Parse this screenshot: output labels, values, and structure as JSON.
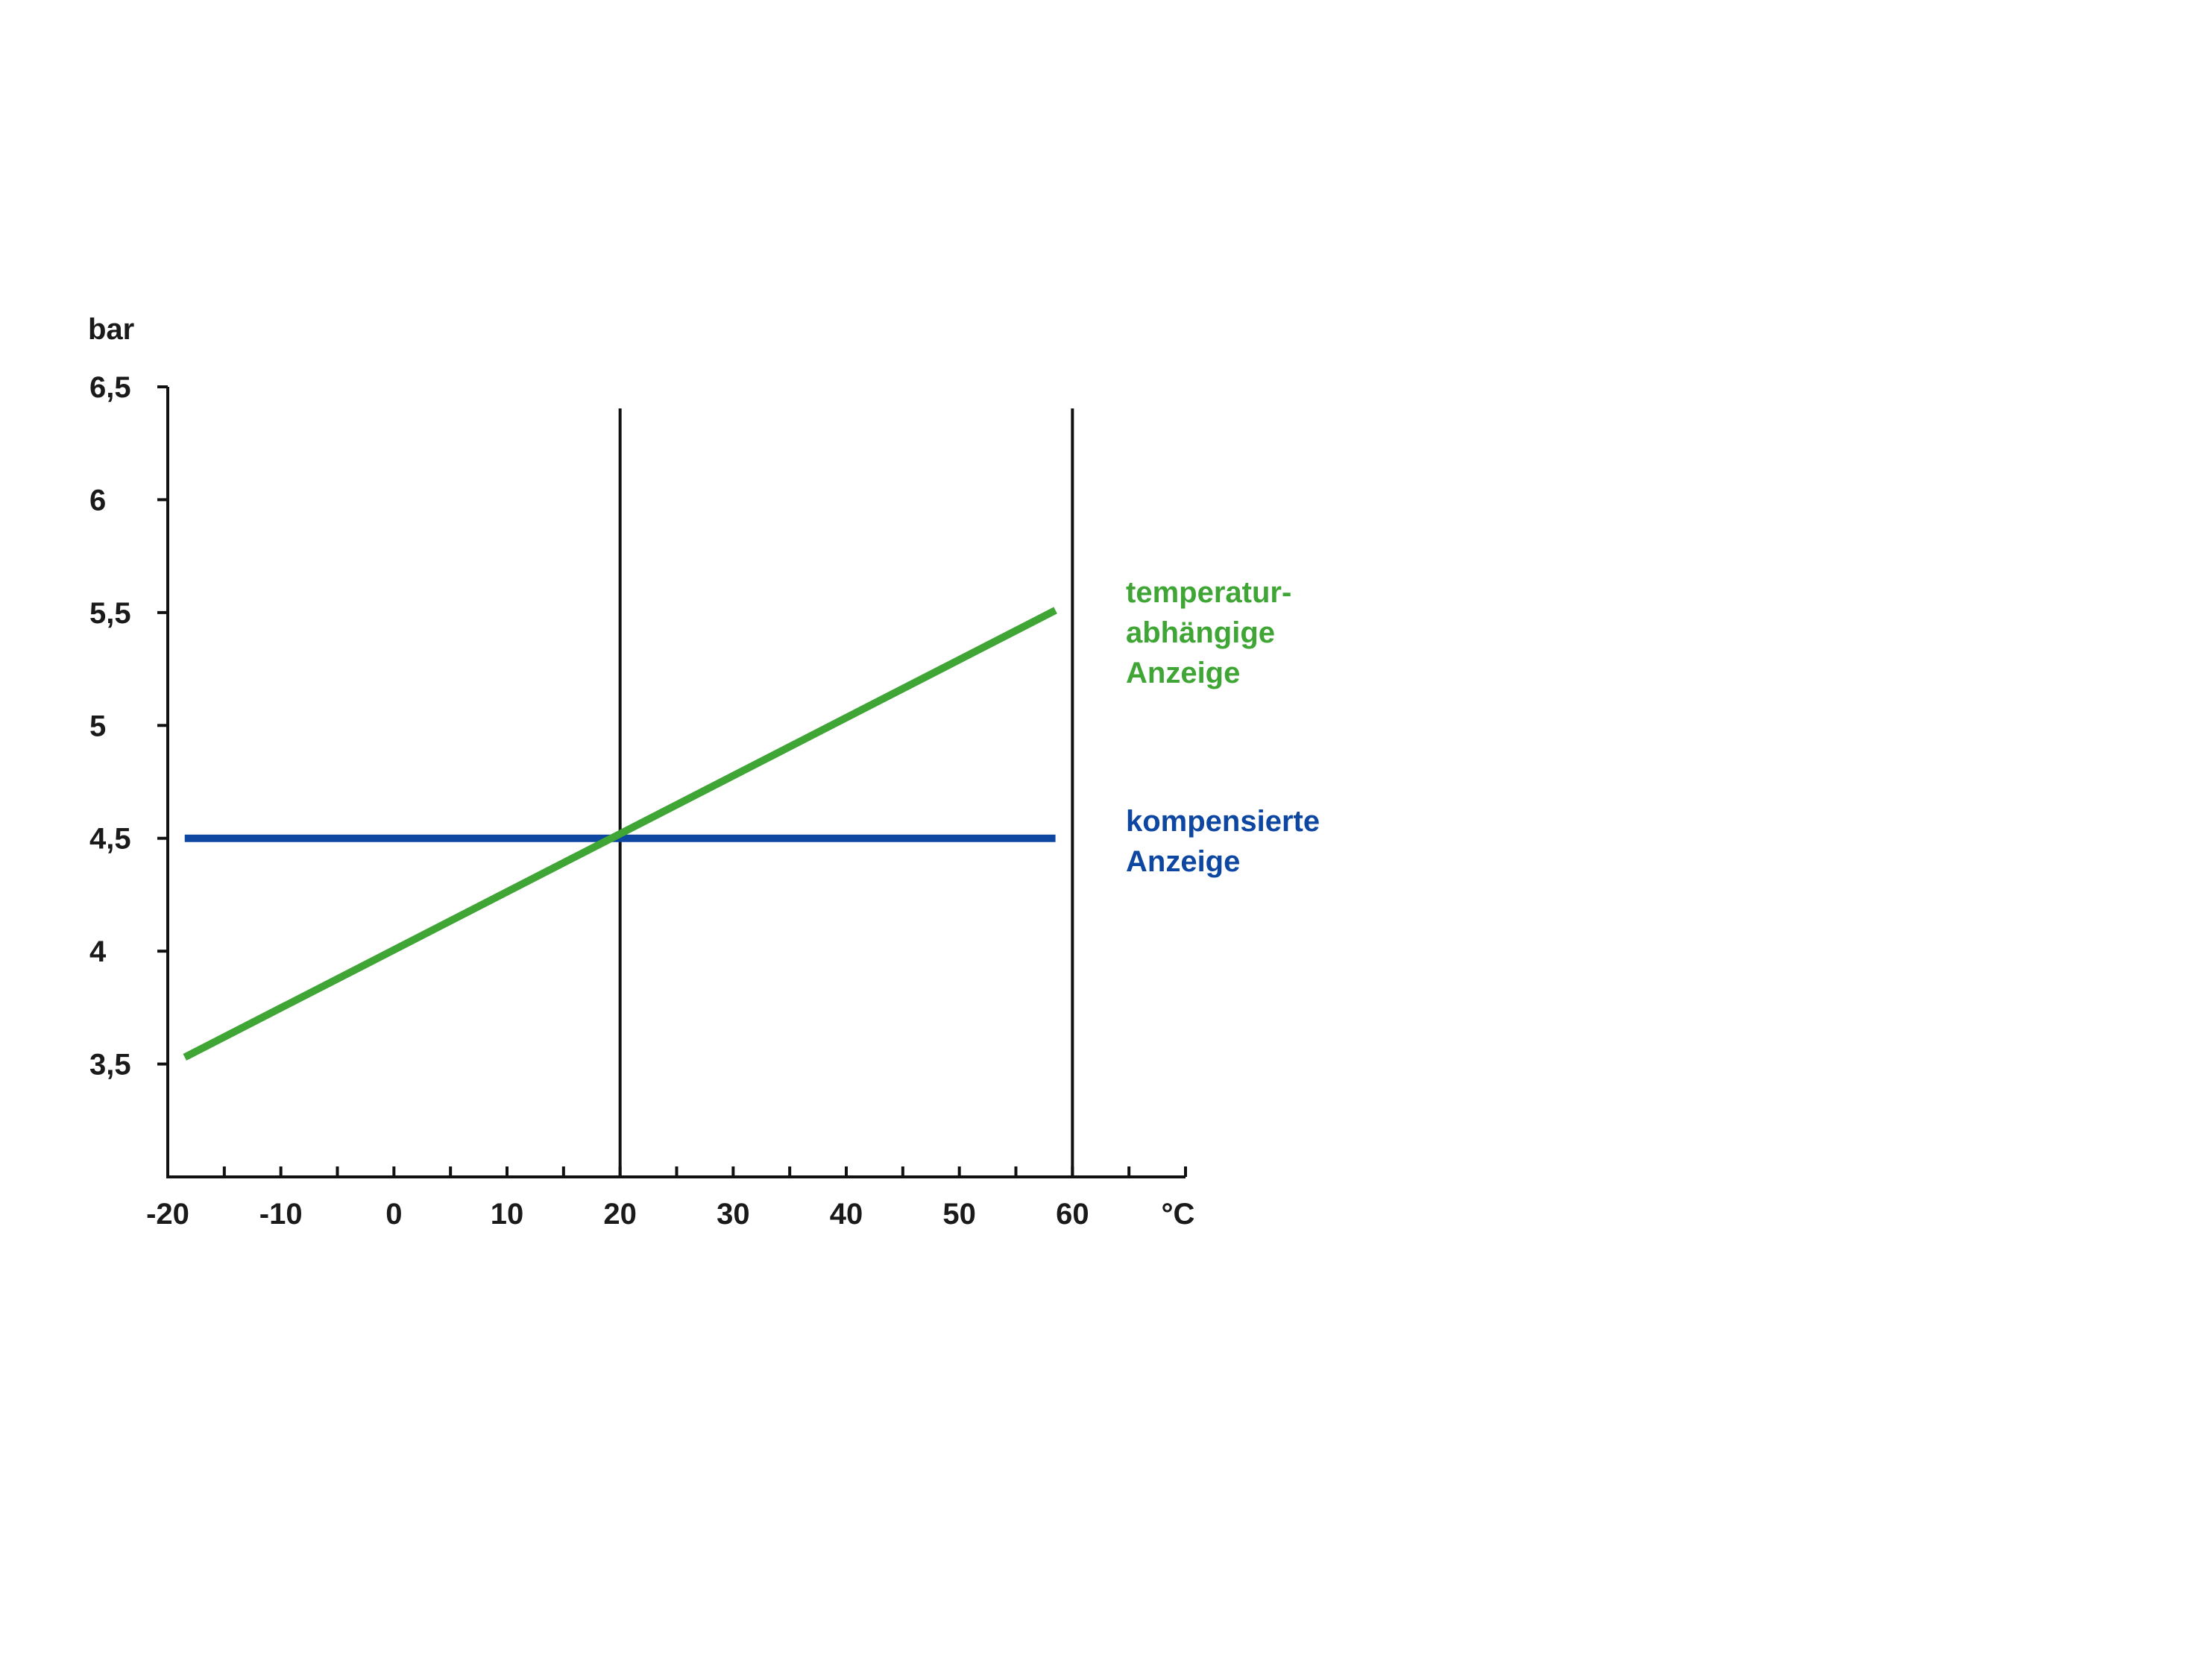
{
  "chart_data": {
    "type": "line",
    "ylabel": "bar",
    "xlabel": "°C",
    "xlim": [
      -20,
      70
    ],
    "ylim": [
      3,
      6.5
    ],
    "x_ticks": [
      -20,
      -10,
      0,
      10,
      20,
      30,
      40,
      50,
      60
    ],
    "x_tick_labels": [
      "-20",
      "-10",
      "0",
      "10",
      "20",
      "30",
      "40",
      "50",
      "60"
    ],
    "y_ticks": [
      3.5,
      4,
      4.5,
      5,
      5.5,
      6,
      6.5
    ],
    "y_tick_labels": [
      "3,5",
      "4",
      "4,5",
      "5",
      "5,5",
      "6",
      "6,5"
    ],
    "reference_lines_x": [
      20,
      60
    ],
    "grid": false,
    "legend_position": "right",
    "series": [
      {
        "name": "temperatur-abhängige Anzeige",
        "legend_lines": [
          "temperatur-",
          "abhängige",
          "Anzeige"
        ],
        "color": "#3fa535",
        "x": [
          -18.5,
          58.5
        ],
        "y": [
          3.53,
          5.51
        ]
      },
      {
        "name": "kompensierte Anzeige",
        "legend_lines": [
          "kompensierte",
          "Anzeige"
        ],
        "color": "#0d47a1",
        "x": [
          -18.5,
          58.5
        ],
        "y": [
          4.5,
          4.5
        ]
      }
    ]
  }
}
